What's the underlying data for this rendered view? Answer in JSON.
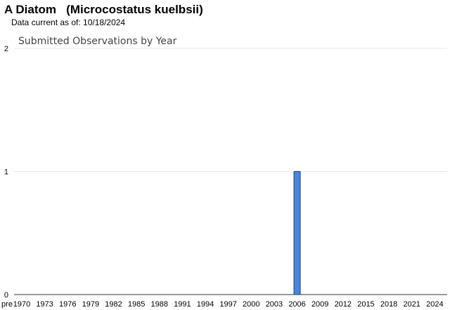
{
  "header": {
    "title": "A Diatom   (Microcostatus kuelbsii)",
    "data_current": "Data current as of: 10/18/2024"
  },
  "chart_data": {
    "type": "bar",
    "title": "Submitted Observations by Year",
    "xlabel": "",
    "ylabel": "",
    "ylim": [
      0,
      2
    ],
    "y_ticks": [
      "0",
      "1",
      "2"
    ],
    "x_tick_labels": [
      "pre",
      "1970",
      "1973",
      "1976",
      "1979",
      "1982",
      "1985",
      "1988",
      "1991",
      "1994",
      "1997",
      "2000",
      "2003",
      "2006",
      "2009",
      "2012",
      "2015",
      "2018",
      "2021",
      "2024"
    ],
    "categories": [
      "2006"
    ],
    "values": [
      1
    ],
    "grid": true,
    "legend": "none",
    "colors": {
      "bar_fill": "#4a86e0",
      "bar_stroke": "#1a3d7a",
      "grid": "#e6e6e6",
      "axis": "#333333"
    }
  }
}
